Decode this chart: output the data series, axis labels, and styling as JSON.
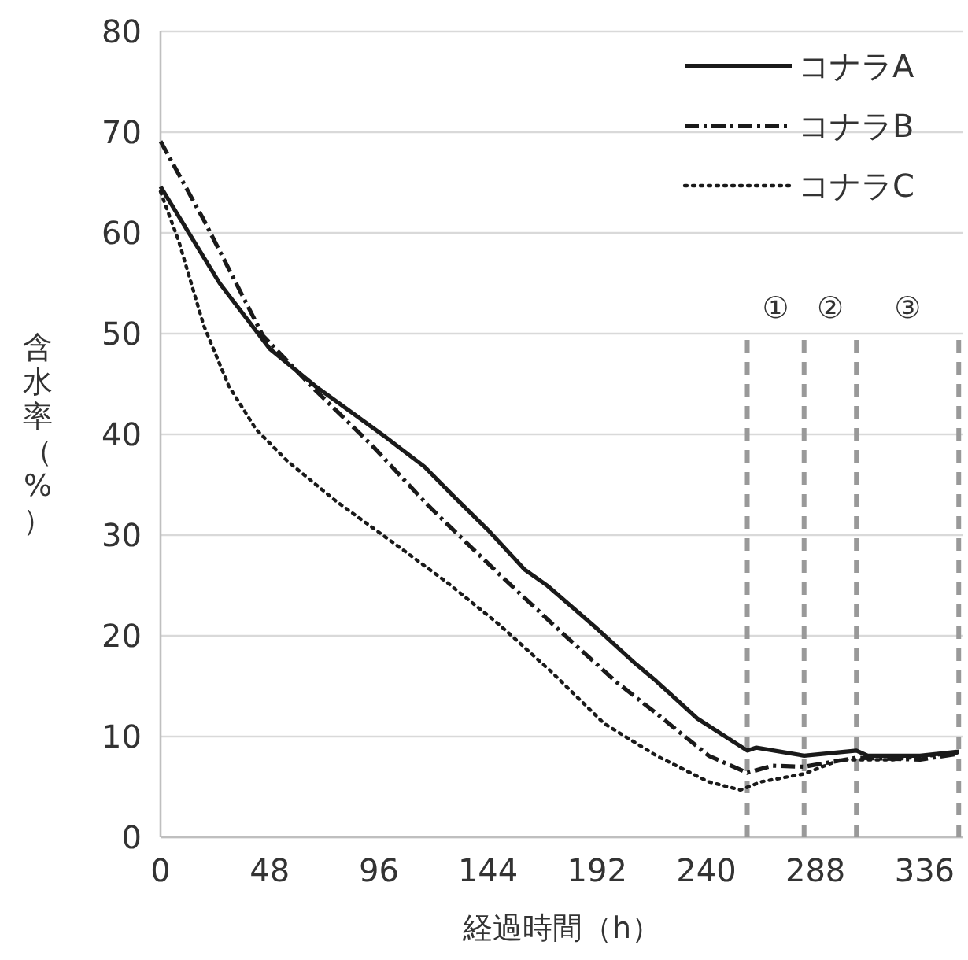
{
  "chart_data": {
    "type": "line",
    "xlabel": "経過時間（h）",
    "ylabel": "含水率（%）",
    "xlim": [
      0,
      353
    ],
    "xticks": [
      0,
      48,
      96,
      144,
      192,
      240,
      288,
      336
    ],
    "ylim": [
      0,
      80
    ],
    "yticks": [
      0,
      10,
      20,
      30,
      40,
      50,
      60,
      70,
      80
    ],
    "grid": "y",
    "legend": "top right",
    "series": [
      {
        "name": "コナラA",
        "color": "#1a1a1a",
        "line_style": "solid",
        "x": [
          0,
          26,
          48,
          68,
          98,
          116,
          130,
          144,
          160,
          170,
          191,
          209,
          218,
          236,
          258,
          262,
          283,
          306,
          311,
          334,
          351
        ],
        "values": [
          64.6,
          55.0,
          48.5,
          44.8,
          39.9,
          36.8,
          33.6,
          30.5,
          26.6,
          25.0,
          20.9,
          17.2,
          15.5,
          11.8,
          8.6,
          8.9,
          8.1,
          8.6,
          8.1,
          8.1,
          8.5
        ]
      },
      {
        "name": "コナラB",
        "color": "#1a1a1a",
        "line_style": "dashed",
        "x": [
          0,
          19,
          45,
          68,
          93,
          117,
          126,
          149,
          177,
          200,
          218,
          241,
          258,
          269,
          283,
          306,
          334,
          351
        ],
        "values": [
          69.1,
          61.3,
          49.8,
          44.4,
          38.9,
          33.1,
          31.1,
          26.1,
          20.2,
          15.5,
          12.3,
          8.1,
          6.4,
          7.1,
          7.0,
          7.9,
          7.7,
          8.3
        ]
      },
      {
        "name": "コナラC",
        "color": "#1a1a1a",
        "line_style": "dotted",
        "x": [
          0,
          8,
          19,
          30,
          42,
          56,
          77,
          105,
          126,
          149,
          172,
          195,
          218,
          241,
          255,
          264,
          283,
          299,
          322,
          351
        ],
        "values": [
          64.1,
          59.2,
          50.8,
          44.8,
          40.5,
          37.3,
          33.4,
          28.8,
          25.3,
          21.1,
          16.4,
          11.3,
          8.1,
          5.5,
          4.7,
          5.5,
          6.3,
          7.7,
          7.7,
          8.4
        ]
      }
    ],
    "ref_lines": [
      {
        "axis": "x",
        "value": 258,
        "color": "#999999",
        "line_style": "dashed"
      },
      {
        "axis": "x",
        "value": 283,
        "color": "#999999",
        "line_style": "dashed"
      },
      {
        "axis": "x",
        "value": 306,
        "color": "#999999",
        "line_style": "dashed"
      },
      {
        "axis": "x",
        "value": 351,
        "color": "#999999",
        "line_style": "dashed"
      }
    ],
    "annotations": [
      "①",
      "②",
      "③"
    ]
  }
}
